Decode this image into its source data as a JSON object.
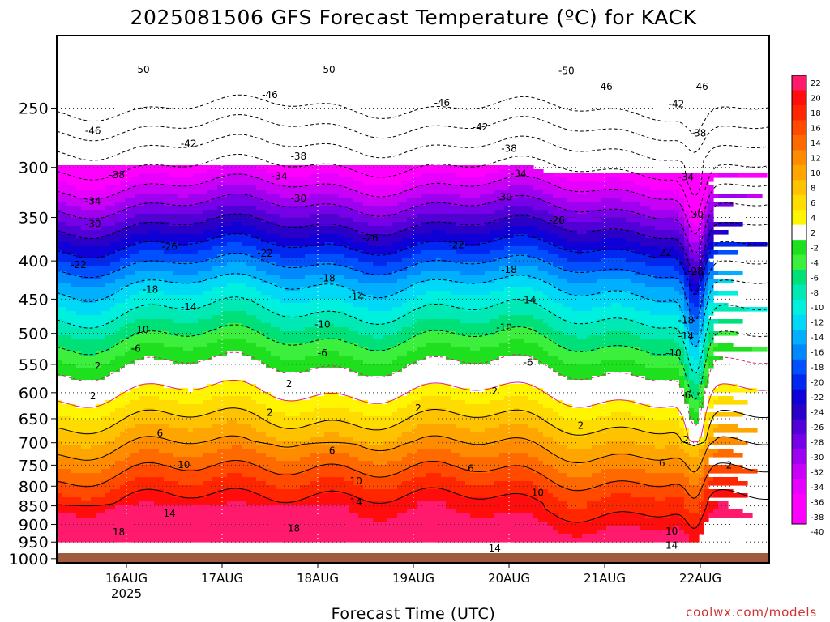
{
  "chart_data": {
    "type": "heatmap",
    "title": "2025081506 GFS Forecast Temperature (ºC) for KACK",
    "xlabel": "Forecast Time (UTC)",
    "ylabel": "",
    "credit": "coolwx.com/models",
    "x_ticks": [
      {
        "label": "16AUG",
        "sub": "2025"
      },
      {
        "label": "17AUG",
        "sub": ""
      },
      {
        "label": "18AUG",
        "sub": ""
      },
      {
        "label": "19AUG",
        "sub": ""
      },
      {
        "label": "20AUG",
        "sub": ""
      },
      {
        "label": "21AUG",
        "sub": ""
      },
      {
        "label": "22AUG",
        "sub": ""
      }
    ],
    "y_axis": {
      "type": "pressure",
      "unit": "hPa",
      "inverted": true,
      "range": [
        1013,
        200
      ]
    },
    "y_ticks": [
      250,
      300,
      350,
      400,
      450,
      500,
      550,
      600,
      650,
      700,
      750,
      800,
      850,
      900,
      950,
      1000
    ],
    "colorbar": {
      "labels": [
        "22",
        "20",
        "18",
        "16",
        "14",
        "12",
        "10",
        "8",
        "6",
        "4",
        "2",
        "-2",
        "-4",
        "-6",
        "-8",
        "-10",
        "-12",
        "-14",
        "-16",
        "-18",
        "-20",
        "-22",
        "-24",
        "-26",
        "-28",
        "-30",
        "-32",
        "-34",
        "-36",
        "-38",
        "-40"
      ],
      "colors": [
        "#ff1a6e",
        "#ff0d0d",
        "#ff2600",
        "#ff4a00",
        "#ff6a00",
        "#ff8c00",
        "#ffa500",
        "#ffc200",
        "#ffdc00",
        "#fff500",
        "#ffffff",
        "#1fe01f",
        "#3cef3c",
        "#00e078",
        "#00e8b4",
        "#00f0e0",
        "#00d8f8",
        "#00b0ff",
        "#0088ff",
        "#0050ff",
        "#0028f0",
        "#1000d8",
        "#2a00c8",
        "#5200d8",
        "#7800e8",
        "#a000f0",
        "#c800f8",
        "#e800ff",
        "#ff00ff"
      ],
      "cells_top": [
        "#ff1a6e",
        "#ff0d0d",
        "#ff2600",
        "#ff4a00",
        "#ff6a00",
        "#ff8c00",
        "#ffa500",
        "#ffc200",
        "#ffdc00",
        "#fff500",
        "#ffffff",
        "#1fe01f",
        "#3cef3c",
        "#00e078",
        "#00e8b4",
        "#00f0e0",
        "#00d8f8",
        "#00b0ff",
        "#0088ff",
        "#0050ff",
        "#0028f0",
        "#1000d8",
        "#2a00c8",
        "#5200d8",
        "#7800e8",
        "#a000f0",
        "#c800f8",
        "#e800ff",
        "#ff00ff",
        "#ff00ff"
      ]
    },
    "isotherms_c": [
      -50,
      -46,
      -42,
      -38,
      -34,
      -30,
      -26,
      -22,
      -18,
      -14,
      -10,
      -6,
      -2,
      2,
      6,
      10,
      14,
      18
    ],
    "contour_labels": [
      {
        "text": "-50",
        "t": 0.16,
        "p": 222
      },
      {
        "text": "-50",
        "t": 2.1,
        "p": 222
      },
      {
        "text": "-50",
        "t": 4.6,
        "p": 223
      },
      {
        "text": "-46",
        "t": -0.35,
        "p": 268
      },
      {
        "text": "-46",
        "t": 1.5,
        "p": 240
      },
      {
        "text": "-46",
        "t": 3.3,
        "p": 246
      },
      {
        "text": "-46",
        "t": 5.0,
        "p": 234
      },
      {
        "text": "-46",
        "t": 6.0,
        "p": 234
      },
      {
        "text": "-42",
        "t": 0.65,
        "p": 279
      },
      {
        "text": "-42",
        "t": 3.7,
        "p": 265
      },
      {
        "text": "-42",
        "t": 5.75,
        "p": 247
      },
      {
        "text": "-38",
        "t": -0.1,
        "p": 307
      },
      {
        "text": "-38",
        "t": 1.8,
        "p": 290
      },
      {
        "text": "-38",
        "t": 4.0,
        "p": 283
      },
      {
        "text": "-38",
        "t": 5.98,
        "p": 270
      },
      {
        "text": "-34",
        "t": -0.35,
        "p": 333
      },
      {
        "text": "-34",
        "t": 1.6,
        "p": 308
      },
      {
        "text": "-34",
        "t": 4.1,
        "p": 306
      },
      {
        "text": "-34",
        "t": 5.85,
        "p": 309
      },
      {
        "text": "-30",
        "t": -0.35,
        "p": 357
      },
      {
        "text": "-30",
        "t": 1.8,
        "p": 330
      },
      {
        "text": "-30",
        "t": 3.95,
        "p": 329
      },
      {
        "text": "-30",
        "t": 5.95,
        "p": 347
      },
      {
        "text": "-26",
        "t": 0.45,
        "p": 383
      },
      {
        "text": "-26",
        "t": 2.55,
        "p": 373
      },
      {
        "text": "-26",
        "t": 4.5,
        "p": 353
      },
      {
        "text": "-22",
        "t": -0.5,
        "p": 405
      },
      {
        "text": "-22",
        "t": 1.45,
        "p": 391
      },
      {
        "text": "-22",
        "t": 3.45,
        "p": 381
      },
      {
        "text": "-22",
        "t": 5.62,
        "p": 390
      },
      {
        "text": "-18",
        "t": 0.25,
        "p": 437
      },
      {
        "text": "-18",
        "t": 2.1,
        "p": 422
      },
      {
        "text": "-18",
        "t": 4.0,
        "p": 411
      },
      {
        "text": "-18",
        "t": 5.85,
        "p": 480
      },
      {
        "text": "-14",
        "t": 0.65,
        "p": 461
      },
      {
        "text": "-14",
        "t": 2.4,
        "p": 447
      },
      {
        "text": "-14",
        "t": 4.2,
        "p": 451
      },
      {
        "text": "-28",
        "t": 5.95,
        "p": 413
      },
      {
        "text": "-14",
        "t": 5.85,
        "p": 504
      },
      {
        "text": "-10",
        "t": 0.15,
        "p": 494
      },
      {
        "text": "-10",
        "t": 2.05,
        "p": 486
      },
      {
        "text": "-10",
        "t": 3.95,
        "p": 491
      },
      {
        "text": "-10",
        "t": 5.72,
        "p": 531
      },
      {
        "text": "-6",
        "t": 0.1,
        "p": 524
      },
      {
        "text": "-6",
        "t": 2.05,
        "p": 531
      },
      {
        "text": "-6",
        "t": 4.2,
        "p": 547
      },
      {
        "text": "-6",
        "t": 5.85,
        "p": 605
      },
      {
        "text": "2",
        "t": -0.3,
        "p": 553
      },
      {
        "text": "2",
        "t": 1.7,
        "p": 584
      },
      {
        "text": "2",
        "t": 3.85,
        "p": 597
      },
      {
        "text": "2",
        "t": -0.35,
        "p": 606
      },
      {
        "text": "2",
        "t": 1.5,
        "p": 638
      },
      {
        "text": "2",
        "t": 3.05,
        "p": 629
      },
      {
        "text": "2",
        "t": 4.75,
        "p": 664
      },
      {
        "text": "2",
        "t": 5.85,
        "p": 694
      },
      {
        "text": "2",
        "t": 6.3,
        "p": 750
      },
      {
        "text": "6",
        "t": 0.35,
        "p": 680
      },
      {
        "text": "6",
        "t": 2.15,
        "p": 717
      },
      {
        "text": "6",
        "t": 3.6,
        "p": 758
      },
      {
        "text": "6",
        "t": 5.6,
        "p": 746
      },
      {
        "text": "10",
        "t": 0.6,
        "p": 749
      },
      {
        "text": "10",
        "t": 2.4,
        "p": 788
      },
      {
        "text": "10",
        "t": 4.3,
        "p": 817
      },
      {
        "text": "10",
        "t": 5.7,
        "p": 919
      },
      {
        "text": "14",
        "t": 0.45,
        "p": 870
      },
      {
        "text": "14",
        "t": 2.4,
        "p": 840
      },
      {
        "text": "14",
        "t": 3.85,
        "p": 968
      },
      {
        "text": "14",
        "t": 5.7,
        "p": 960
      },
      {
        "text": "18",
        "t": -0.08,
        "p": 922
      },
      {
        "text": "18",
        "t": 1.75,
        "p": 911
      },
      {
        "text": "18",
        "t": 3.85,
        "p": 1003
      },
      {
        "text": "18",
        "t": 5.7,
        "p": 995
      }
    ],
    "grid": true
  }
}
